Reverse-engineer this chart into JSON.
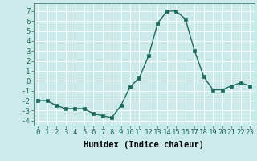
{
  "x": [
    0,
    1,
    2,
    3,
    4,
    5,
    6,
    7,
    8,
    9,
    10,
    11,
    12,
    13,
    14,
    15,
    16,
    17,
    18,
    19,
    20,
    21,
    22,
    23
  ],
  "y": [
    -2,
    -2,
    -2.5,
    -2.8,
    -2.8,
    -2.8,
    -3.3,
    -3.5,
    -3.7,
    -2.5,
    -0.6,
    0.3,
    2.5,
    5.8,
    7.0,
    7.0,
    6.2,
    3.0,
    0.4,
    -0.9,
    -0.9,
    -0.5,
    -0.2,
    -0.5
  ],
  "line_color": "#1a6b5a",
  "marker": "s",
  "marker_size": 2.2,
  "bg_color": "#cceaea",
  "grid_color": "#ffffff",
  "xlabel": "Humidex (Indice chaleur)",
  "ylim": [
    -4.5,
    7.8
  ],
  "xlim": [
    -0.5,
    23.5
  ],
  "yticks": [
    -4,
    -3,
    -2,
    -1,
    0,
    1,
    2,
    3,
    4,
    5,
    6,
    7
  ],
  "xticks": [
    0,
    1,
    2,
    3,
    4,
    5,
    6,
    7,
    8,
    9,
    10,
    11,
    12,
    13,
    14,
    15,
    16,
    17,
    18,
    19,
    20,
    21,
    22,
    23
  ],
  "xlabel_fontsize": 7.5,
  "tick_fontsize": 6.5,
  "linewidth": 1.0
}
